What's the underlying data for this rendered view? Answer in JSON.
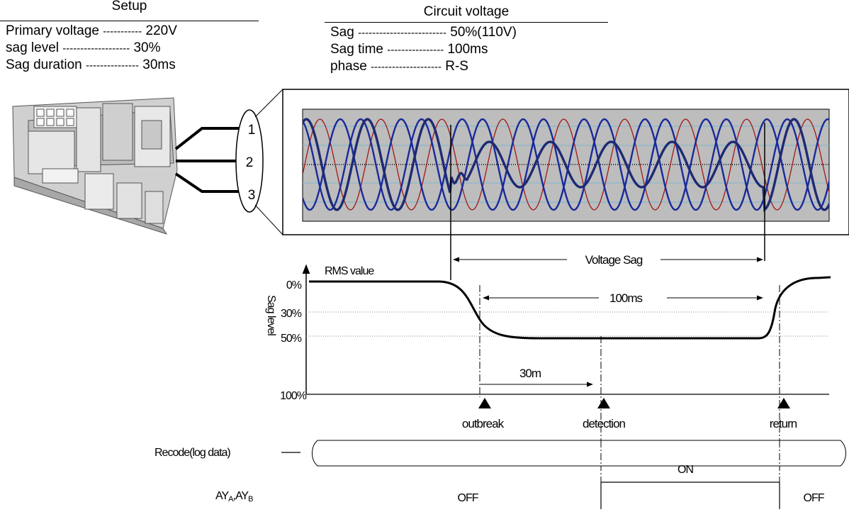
{
  "setup": {
    "title": "Setup",
    "rows": [
      {
        "label": "Primary voltage",
        "dashes": "-----------",
        "value": "220V"
      },
      {
        "label": "sag level",
        "dashes": "-------------------",
        "value": "30%"
      },
      {
        "label": "Sag duration",
        "dashes": "---------------",
        "value": "30ms"
      }
    ]
  },
  "circuit": {
    "title": "Circuit voltage",
    "rows": [
      {
        "label": "Sag",
        "dashes": "-------------------------",
        "value": "50%(110V)"
      },
      {
        "label": "Sag time",
        "dashes": "----------------",
        "value": "100ms"
      },
      {
        "label": "phase",
        "dashes": "--------------------",
        "value": "R-S"
      }
    ]
  },
  "terminals": [
    "1",
    "2",
    "3"
  ],
  "graph": {
    "rms_label": "RMS value",
    "axis_label": "Sag level",
    "ticks": [
      "0%",
      "30%",
      "50%",
      "100%"
    ],
    "voltage_sag_label": "Voltage Sag",
    "duration_label": "100ms",
    "detect_label": "30m",
    "events": [
      "outbreak",
      "detection",
      "return"
    ]
  },
  "record": {
    "label": "Recode(log data)"
  },
  "relay": {
    "label_main": "AY",
    "sub_a": "A",
    "sep": ",AY",
    "sub_b": "B",
    "states": [
      "OFF",
      "ON",
      "OFF"
    ]
  },
  "colors": {
    "scope_bg": "#bdbdbd",
    "phase_red": "#a01818",
    "phase_blue": "#1a2a9a",
    "sag_trace": "#1e2a72",
    "grid": "#7ab8d0"
  }
}
